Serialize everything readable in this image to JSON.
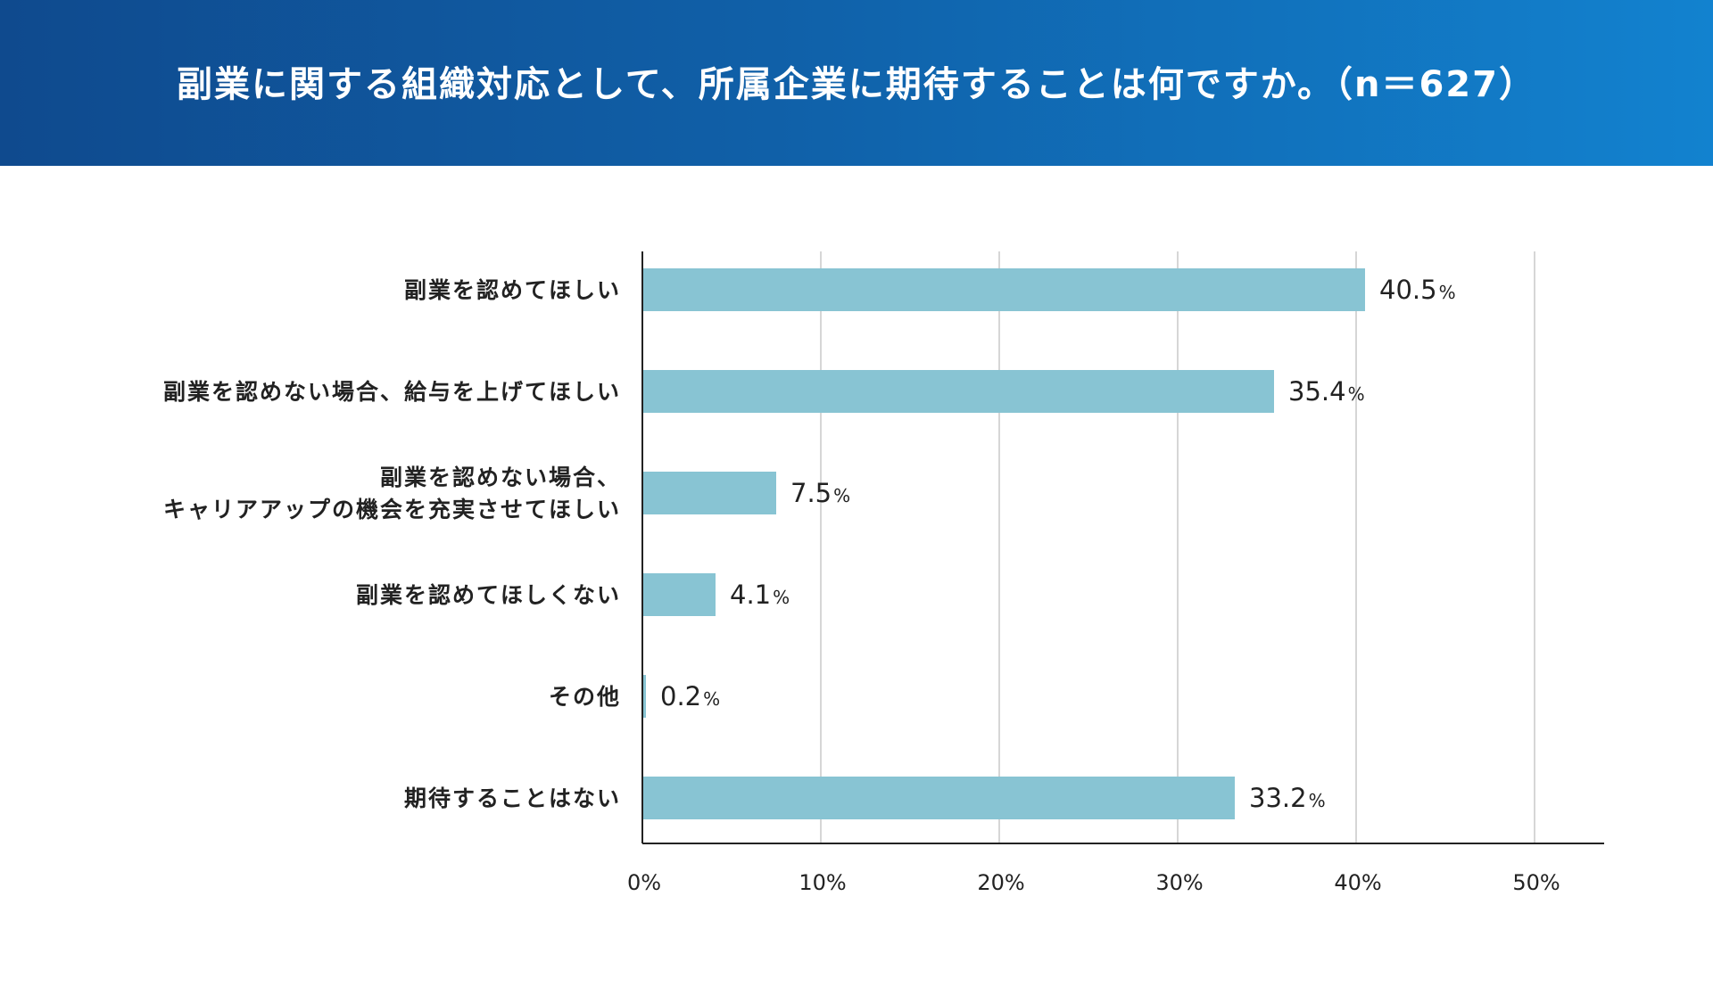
{
  "header": {
    "title": "副業に関する組織対応として、所属企業に期待することは何ですか。（n＝627）"
  },
  "colors": {
    "bar": "#88c4d3",
    "grid": "#c8c8c8",
    "axis": "#222222"
  },
  "chart_data": {
    "type": "bar",
    "orientation": "horizontal",
    "categories": [
      [
        "副業を認めてほしい"
      ],
      [
        "副業を認めない場合、給与を上げてほしい"
      ],
      [
        "副業を認めない場合、",
        "キャリアアップの機会を充実させてほしい"
      ],
      [
        "副業を認めてほしくない"
      ],
      [
        "その他"
      ],
      [
        "期待することはない"
      ]
    ],
    "values": [
      40.5,
      35.4,
      7.5,
      4.1,
      0.2,
      33.2
    ],
    "value_labels": [
      "40.5",
      "35.4",
      "7.5",
      "4.1",
      "0.2",
      "33.2"
    ],
    "value_unit": "%",
    "xlim": [
      0,
      54
    ],
    "xticks": [
      0,
      10,
      20,
      30,
      40,
      50
    ],
    "xtick_labels": [
      "0%",
      "10%",
      "20%",
      "30%",
      "40%",
      "50%"
    ],
    "grid": true,
    "legend": "none"
  }
}
